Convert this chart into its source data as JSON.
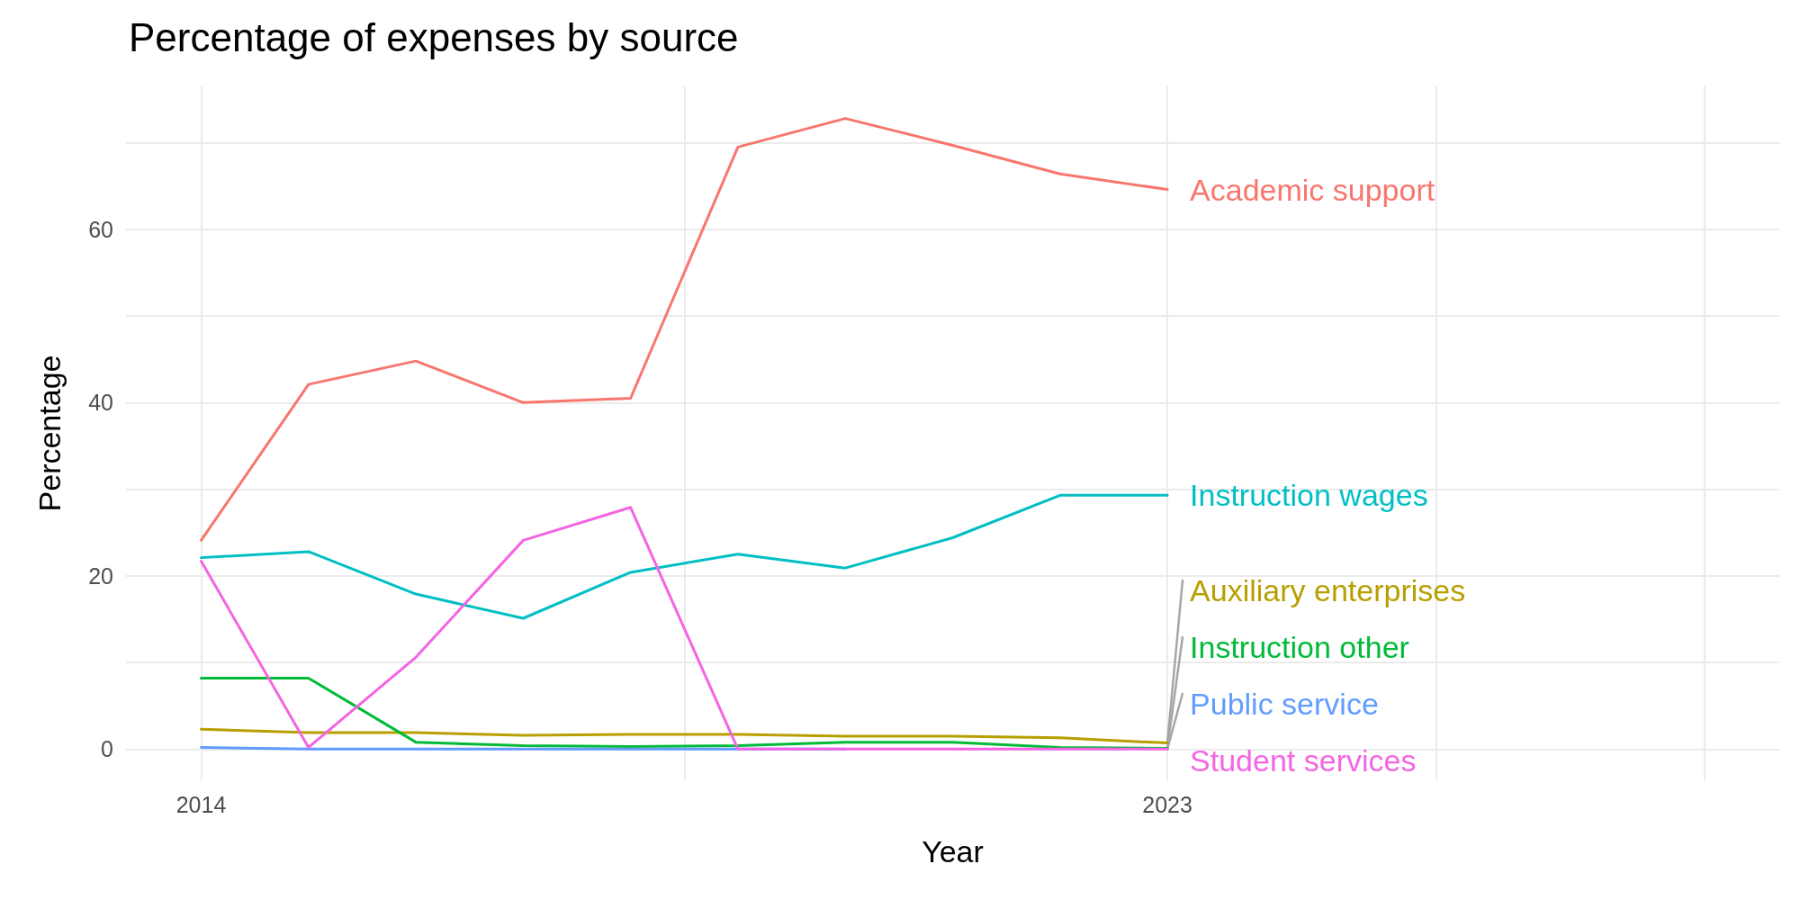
{
  "chart_data": {
    "type": "line",
    "title": "Percentage of expenses by source",
    "xlabel": "Year",
    "ylabel": "Percentage",
    "x": [
      2014,
      2015,
      2016,
      2017,
      2018,
      2019,
      2020,
      2021,
      2022,
      2023
    ],
    "series": [
      {
        "name": "Academic support",
        "color": "#f8766d",
        "values": [
          24.1,
          42.1,
          44.8,
          40.0,
          40.5,
          69.5,
          72.8,
          69.7,
          66.4,
          64.6
        ]
      },
      {
        "name": "Auxiliary enterprises",
        "color": "#b79f00",
        "values": [
          2.3,
          1.9,
          1.9,
          1.6,
          1.7,
          1.7,
          1.5,
          1.5,
          1.3,
          0.7
        ]
      },
      {
        "name": "Instruction other",
        "color": "#00ba38",
        "values": [
          8.2,
          8.2,
          0.8,
          0.4,
          0.3,
          0.4,
          0.8,
          0.8,
          0.2,
          0.1
        ]
      },
      {
        "name": "Instruction wages",
        "color": "#00bfc4",
        "values": [
          22.1,
          22.8,
          17.9,
          15.1,
          20.4,
          22.5,
          20.9,
          24.4,
          29.3,
          29.3
        ]
      },
      {
        "name": "Public service",
        "color": "#619cff",
        "values": [
          0.2,
          0,
          0,
          0,
          0,
          0,
          0,
          null,
          null,
          null
        ]
      },
      {
        "name": "Student services",
        "color": "#f564e3",
        "values": [
          21.7,
          0.2,
          10.6,
          24.1,
          27.9,
          0,
          0,
          0,
          0,
          0
        ]
      }
    ],
    "xlim": [
      2013.3,
      2028.7
    ],
    "xticks": [
      2014,
      {
        "value": 2018.5,
        "label": null
      },
      2023,
      {
        "value": 2025.5,
        "label": null
      },
      {
        "value": 2028,
        "label": null
      }
    ],
    "ylim": [
      -3.6,
      76.5
    ],
    "yticks": [
      0,
      {
        "value": 10,
        "label": null
      },
      20,
      {
        "value": 30,
        "label": null
      },
      40,
      {
        "value": 50,
        "label": null
      },
      60,
      {
        "value": 70,
        "label": null
      }
    ],
    "grid": true,
    "legend": false,
    "marker": "none",
    "line_style": "solid"
  }
}
